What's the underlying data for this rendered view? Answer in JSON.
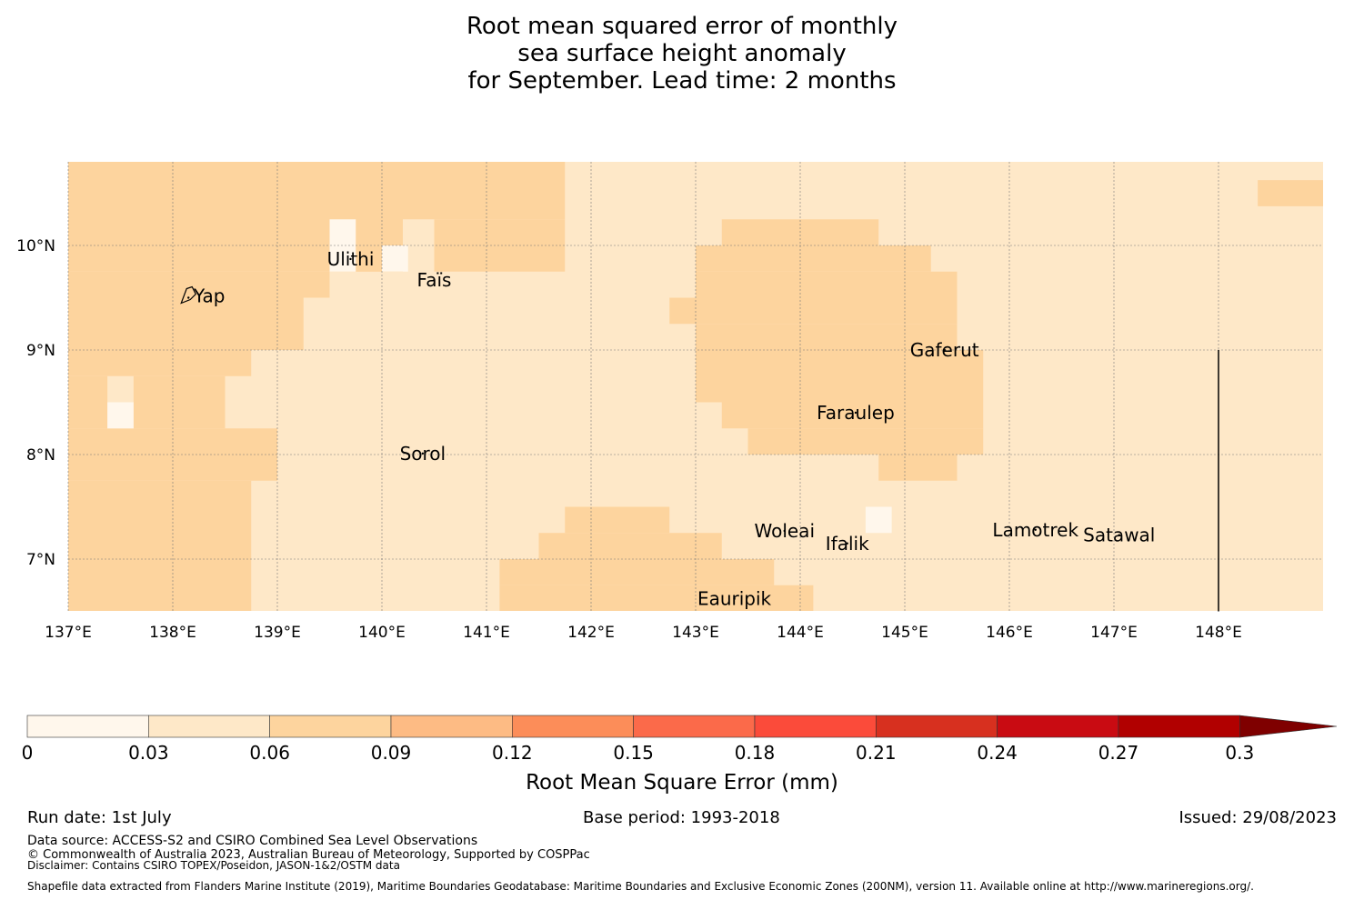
{
  "title": {
    "line1": "Root mean squared error of monthly",
    "line2": "sea surface height anomaly",
    "line3": "for September. Lead time: 2 months"
  },
  "map": {
    "lon_range": [
      137,
      149
    ],
    "lat_range": [
      6.5,
      10.8
    ],
    "x_ticks": [
      {
        "value": 137,
        "label": "137°E"
      },
      {
        "value": 138,
        "label": "138°E"
      },
      {
        "value": 139,
        "label": "139°E"
      },
      {
        "value": 140,
        "label": "140°E"
      },
      {
        "value": 141,
        "label": "141°E"
      },
      {
        "value": 142,
        "label": "142°E"
      },
      {
        "value": 143,
        "label": "143°E"
      },
      {
        "value": 144,
        "label": "144°E"
      },
      {
        "value": 145,
        "label": "145°E"
      },
      {
        "value": 146,
        "label": "146°E"
      },
      {
        "value": 147,
        "label": "147°E"
      },
      {
        "value": 148,
        "label": "148°E"
      }
    ],
    "y_ticks": [
      {
        "value": 7,
        "label": "7°N"
      },
      {
        "value": 8,
        "label": "8°N"
      },
      {
        "value": 9,
        "label": "9°N"
      },
      {
        "value": 10,
        "label": "10°N"
      }
    ],
    "background_class_color": "#fee8c8",
    "regions": [
      {
        "lon": [
          137,
          140.2
        ],
        "lat": [
          9.75,
          10.8
        ],
        "color": "#fdd49e"
      },
      {
        "lon": [
          137,
          141.75
        ],
        "lat": [
          10.25,
          10.8
        ],
        "color": "#fdd49e"
      },
      {
        "lon": [
          140.5,
          141.75
        ],
        "lat": [
          9.75,
          10.25
        ],
        "color": "#fdd49e"
      },
      {
        "lon": [
          139.75,
          140.2
        ],
        "lat": [
          9.75,
          10.25
        ],
        "color": "#fdd49e"
      },
      {
        "lon": [
          137,
          139.5
        ],
        "lat": [
          9.5,
          9.75
        ],
        "color": "#fdd49e"
      },
      {
        "lon": [
          137,
          139.25
        ],
        "lat": [
          9.0,
          9.5
        ],
        "color": "#fdd49e"
      },
      {
        "lon": [
          137,
          138.75
        ],
        "lat": [
          8.75,
          9.0
        ],
        "color": "#fdd49e"
      },
      {
        "lon": [
          137,
          138.5
        ],
        "lat": [
          8.25,
          8.75
        ],
        "color": "#fdd49e"
      },
      {
        "lon": [
          137,
          139.0
        ],
        "lat": [
          7.75,
          8.25
        ],
        "color": "#fdd49e"
      },
      {
        "lon": [
          137,
          138.75
        ],
        "lat": [
          6.5,
          7.75
        ],
        "color": "#fdd49e"
      },
      {
        "lon": [
          137.375,
          137.625
        ],
        "lat": [
          8.25,
          8.75
        ],
        "color": "#fee8c8"
      },
      {
        "lon": [
          137.375,
          137.625
        ],
        "lat": [
          8.25,
          8.5
        ],
        "color": "#fff7ec"
      },
      {
        "lon": [
          139.5,
          139.75
        ],
        "lat": [
          9.75,
          10.25
        ],
        "color": "#fff7ec"
      },
      {
        "lon": [
          140.0,
          140.25
        ],
        "lat": [
          9.75,
          10.0
        ],
        "color": "#fff7ec"
      },
      {
        "lon": [
          143.25,
          144.75
        ],
        "lat": [
          10.0,
          10.25
        ],
        "color": "#fdd49e"
      },
      {
        "lon": [
          143.0,
          145.25
        ],
        "lat": [
          9.75,
          10.0
        ],
        "color": "#fdd49e"
      },
      {
        "lon": [
          143.0,
          145.5
        ],
        "lat": [
          9.25,
          9.75
        ],
        "color": "#fdd49e"
      },
      {
        "lon": [
          142.75,
          143.0
        ],
        "lat": [
          9.25,
          9.5
        ],
        "color": "#fdd49e"
      },
      {
        "lon": [
          143.0,
          145.5
        ],
        "lat": [
          9.0,
          9.25
        ],
        "color": "#fdd49e"
      },
      {
        "lon": [
          143.0,
          145.75
        ],
        "lat": [
          8.5,
          9.0
        ],
        "color": "#fdd49e"
      },
      {
        "lon": [
          143.25,
          145.75
        ],
        "lat": [
          8.25,
          8.5
        ],
        "color": "#fdd49e"
      },
      {
        "lon": [
          143.5,
          145.75
        ],
        "lat": [
          8.0,
          8.25
        ],
        "color": "#fdd49e"
      },
      {
        "lon": [
          144.75,
          145.5
        ],
        "lat": [
          7.75,
          8.0
        ],
        "color": "#fdd49e"
      },
      {
        "lon": [
          144.625,
          144.875
        ],
        "lat": [
          7.25,
          7.5
        ],
        "color": "#fff7ec"
      },
      {
        "lon": [
          141.75,
          142.75
        ],
        "lat": [
          7.25,
          7.5
        ],
        "color": "#fdd49e"
      },
      {
        "lon": [
          141.5,
          143.25
        ],
        "lat": [
          7.0,
          7.25
        ],
        "color": "#fdd49e"
      },
      {
        "lon": [
          141.125,
          143.75
        ],
        "lat": [
          6.75,
          7.0
        ],
        "color": "#fdd49e"
      },
      {
        "lon": [
          141.125,
          144.125
        ],
        "lat": [
          6.5,
          6.75
        ],
        "color": "#fdd49e"
      },
      {
        "lon": [
          148.375,
          149
        ],
        "lat": [
          10.375,
          10.625
        ],
        "color": "#fdd49e"
      }
    ],
    "islands": [
      {
        "name": "Yap",
        "lon": 138.15,
        "lat": 9.5
      },
      {
        "name": "Ulithi",
        "lon": 139.7,
        "lat": 9.87
      },
      {
        "name": "Faïs",
        "lon": 140.5,
        "lat": 9.67
      },
      {
        "name": "Gaferut",
        "lon": 145.38,
        "lat": 9.0
      },
      {
        "name": "Faraulep",
        "lon": 144.53,
        "lat": 8.4
      },
      {
        "name": "Sorol",
        "lon": 140.39,
        "lat": 8.01
      },
      {
        "name": "Woleai",
        "lon": 143.85,
        "lat": 7.27
      },
      {
        "name": "Ifalik",
        "lon": 144.45,
        "lat": 7.15
      },
      {
        "name": "Lamotrek",
        "lon": 146.25,
        "lat": 7.28
      },
      {
        "name": "Satawal",
        "lon": 147.05,
        "lat": 7.23
      },
      {
        "name": "Eauripik",
        "lon": 143.37,
        "lat": 6.62
      }
    ],
    "boundary_line": {
      "lon": 148.0,
      "lat": [
        6.5,
        9.0
      ]
    }
  },
  "colorbar": {
    "label": "Root Mean Square Error (mm)",
    "ticks": [
      "0",
      "0.03",
      "0.06",
      "0.09",
      "0.12",
      "0.15",
      "0.18",
      "0.21",
      "0.24",
      "0.27",
      "0.3"
    ],
    "colors": [
      "#fff7ec",
      "#fee8c8",
      "#fdd49e",
      "#fdbb84",
      "#fc8d59",
      "#fb6a4a",
      "#fb4b3a",
      "#d7301f",
      "#c90b12",
      "#b10000",
      "#7f0000"
    ]
  },
  "footer": {
    "run_date": "Run date: 1st July",
    "base_period": "Base period: 1993-2018",
    "issued": "Issued: 29/08/2023",
    "data_source": "Data source: ACCESS-S2 and CSIRO Combined Sea Level Observations",
    "copyright": "© Commonwealth of Australia 2023, Australian Bureau of Meteorology, Supported by COSPPac",
    "disclaimer": "Disclaimer: Contains CSIRO TOPEX/Poseidon, JASON-1&2/OSTM data",
    "shapefile": "Shapefile data extracted from Flanders Marine Institute (2019), Maritime Boundaries Geodatabase: Maritime Boundaries and Exclusive Economic Zones (200NM), version 11. Available online at http://www.marineregions.org/."
  }
}
